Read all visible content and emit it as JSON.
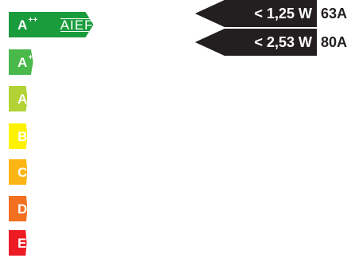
{
  "classes": [
    {
      "letter": "A",
      "sup": "++",
      "color": "#1a9c3c",
      "logo": "AIEF",
      "width": 170
    },
    {
      "letter": "A",
      "sup": "+",
      "color": "#48b94a",
      "logo": "",
      "width": 185
    },
    {
      "letter": "A",
      "sup": "",
      "color": "#b2d235",
      "logo": "",
      "width": 200
    },
    {
      "letter": "B",
      "sup": "",
      "color": "#fff200",
      "logo": "",
      "width": 215
    },
    {
      "letter": "C",
      "sup": "",
      "color": "#fcb514",
      "logo": "",
      "width": 230
    },
    {
      "letter": "D",
      "sup": "",
      "color": "#f37021",
      "logo": "",
      "width": 246
    },
    {
      "letter": "E",
      "sup": "",
      "color": "#ed1c24",
      "logo": "",
      "width": 262
    }
  ],
  "ratings": [
    {
      "value": "< 1,25 W",
      "amp": "63A"
    },
    {
      "value": "< 2,53 W",
      "amp": "80A"
    }
  ],
  "colors": {
    "tag": "#231f20",
    "text": "#231f20"
  }
}
